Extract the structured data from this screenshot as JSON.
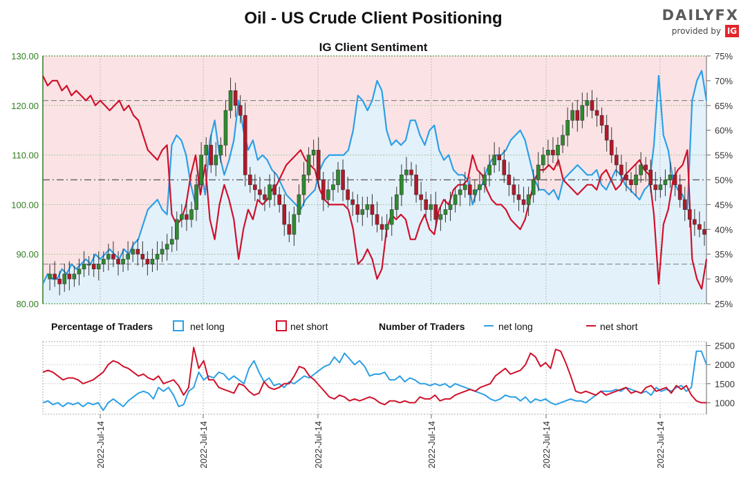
{
  "chart_data": [
    {
      "type": "candlestick+line",
      "title": "Oil - US Crude Client Positioning",
      "subtitle": "IG Client Sentiment",
      "price_axis": {
        "ticks": [
          "80.00",
          "90.00",
          "100.00",
          "110.00",
          "120.00",
          "130.00"
        ],
        "range": [
          80,
          130
        ]
      },
      "sentiment_axis": {
        "ticks": [
          "25%",
          "30%",
          "35%",
          "40%",
          "45%",
          "50%",
          "55%",
          "60%",
          "65%",
          "70%",
          "75%"
        ],
        "range": [
          25,
          75
        ]
      },
      "reference_lines_price": [
        88,
        121
      ],
      "reference_line_pct": 50,
      "prices": [
        85,
        86,
        85,
        84,
        86,
        85,
        86,
        87,
        88,
        88,
        87,
        88,
        89,
        90,
        89,
        88,
        89,
        90,
        91,
        90,
        89,
        88,
        89,
        90,
        91,
        92,
        93,
        97,
        98,
        97,
        99,
        104,
        110,
        112,
        108,
        110,
        112,
        119,
        123,
        120,
        118,
        106,
        104,
        103,
        102,
        101,
        104,
        102,
        100,
        96,
        94,
        98,
        102,
        106,
        110,
        111,
        105,
        101,
        103,
        104,
        107,
        103,
        101,
        100,
        98,
        99,
        100,
        98,
        96,
        95,
        96,
        99,
        102,
        106,
        107,
        106,
        102,
        101,
        99,
        100,
        97,
        98,
        99,
        100,
        102,
        103,
        104,
        102,
        103,
        104,
        106,
        108,
        110,
        109,
        106,
        104,
        102,
        101,
        100,
        102,
        105,
        108,
        110,
        111,
        110,
        112,
        114,
        117,
        119,
        117,
        120,
        121,
        119,
        118,
        116,
        113,
        110,
        108,
        106,
        105,
        104,
        106,
        108,
        107,
        104,
        103,
        104,
        105,
        106,
        104,
        101,
        99,
        97,
        96,
        95,
        94
      ],
      "net_long_pct": [
        29,
        31,
        30,
        30,
        32,
        31,
        33,
        32,
        33,
        34,
        33,
        35,
        34,
        35,
        36,
        35,
        34,
        36,
        35,
        37,
        38,
        41,
        44,
        45,
        46,
        44,
        43,
        57,
        59,
        58,
        55,
        49,
        45,
        53,
        47,
        58,
        62,
        55,
        51,
        54,
        58,
        66,
        60,
        56,
        58,
        54,
        55,
        54,
        52,
        51,
        49,
        47,
        46,
        45,
        44,
        46,
        47,
        48,
        52,
        54,
        55,
        55,
        55,
        55,
        56,
        60,
        67,
        66,
        64,
        66,
        70,
        68,
        60,
        57,
        58,
        57,
        58,
        62,
        62,
        59,
        57,
        60,
        61,
        56,
        54,
        55,
        52,
        51,
        51,
        50,
        45,
        48,
        49,
        52,
        54,
        55,
        55,
        56,
        58,
        59,
        60,
        58,
        54,
        50,
        48,
        48,
        47,
        48,
        46,
        50,
        51,
        52,
        53,
        52,
        51,
        51,
        52,
        49,
        48,
        50,
        52,
        51,
        49,
        48,
        47,
        46,
        48,
        49,
        57,
        71,
        59,
        56,
        50,
        48,
        47,
        44,
        66,
        70,
        72,
        66
      ],
      "net_short_pct": [
        71,
        69,
        70,
        70,
        68,
        69,
        67,
        68,
        67,
        66,
        67,
        65,
        66,
        65,
        64,
        65,
        66,
        64,
        65,
        63,
        62,
        59,
        56,
        55,
        54,
        56,
        57,
        43,
        41,
        42,
        45,
        51,
        55,
        47,
        53,
        42,
        38,
        45,
        49,
        46,
        42,
        34,
        40,
        44,
        42,
        46,
        45,
        46,
        48,
        49,
        51,
        53,
        54,
        55,
        56,
        54,
        53,
        52,
        48,
        46,
        45,
        45,
        45,
        45,
        44,
        40,
        33,
        34,
        36,
        34,
        30,
        32,
        40,
        43,
        42,
        43,
        42,
        38,
        38,
        41,
        43,
        40,
        39,
        44,
        46,
        45,
        48,
        49,
        49,
        50,
        55,
        52,
        51,
        48,
        46,
        45,
        45,
        44,
        42,
        41,
        40,
        42,
        46,
        50,
        52,
        52,
        53,
        52,
        54,
        50,
        49,
        48,
        47,
        48,
        49,
        49,
        48,
        51,
        52,
        50,
        48,
        49,
        51,
        52,
        53,
        54,
        52,
        51,
        43,
        29,
        41,
        44,
        50,
        52,
        53,
        56,
        34,
        30,
        28,
        34
      ],
      "sentiment_series_names": [
        "net long",
        "net short"
      ]
    },
    {
      "type": "line",
      "y_ticks": [
        "1000",
        "1500",
        "2000",
        "2500"
      ],
      "range": [
        700,
        2600
      ],
      "legend": {
        "group1_title": "Percentage of Traders",
        "group1_items": [
          "net long",
          "net short"
        ],
        "group2_title": "Number of Traders",
        "group2_items": [
          "net long",
          "net short"
        ]
      },
      "net_long_count": [
        1000,
        1050,
        950,
        1000,
        900,
        1000,
        950,
        1000,
        900,
        1000,
        950,
        1000,
        800,
        1000,
        1100,
        1000,
        900,
        1050,
        1150,
        1250,
        1300,
        1250,
        1100,
        1400,
        1300,
        1400,
        1200,
        900,
        950,
        1300,
        1400,
        1800,
        1600,
        1700,
        1650,
        1800,
        1750,
        1600,
        1700,
        1600,
        1500,
        1900,
        2100,
        1800,
        1550,
        1650,
        1450,
        1500,
        1400,
        1550,
        1500,
        1600,
        1700,
        1650,
        1750,
        1850,
        1950,
        2000,
        2200,
        2050,
        2300,
        2150,
        2000,
        2100,
        1950,
        1700,
        1750,
        1750,
        1800,
        1600,
        1600,
        1700,
        1550,
        1650,
        1600,
        1500,
        1500,
        1450,
        1500,
        1450,
        1500,
        1400,
        1500,
        1450,
        1400,
        1350,
        1300,
        1250,
        1200,
        1100,
        1050,
        1100,
        1200,
        1150,
        1150,
        1050,
        1150,
        1000,
        1100,
        1050,
        1100,
        1000,
        950,
        1000,
        1050,
        1100,
        1050,
        1050,
        1000,
        1100,
        1200,
        1300,
        1300,
        1300,
        1350,
        1300,
        1400,
        1350,
        1300,
        1250,
        1300,
        1200,
        1400,
        1300,
        1350,
        1300,
        1400,
        1450,
        1300,
        1400,
        2350,
        2350,
        2000
      ],
      "net_short_count": [
        1800,
        1850,
        1800,
        1700,
        1600,
        1650,
        1650,
        1600,
        1500,
        1550,
        1600,
        1700,
        1800,
        2000,
        2100,
        2050,
        1950,
        1900,
        1800,
        1700,
        1750,
        1650,
        1600,
        1700,
        1500,
        1550,
        1600,
        1450,
        1200,
        1400,
        2450,
        1900,
        2100,
        1600,
        1600,
        1400,
        1350,
        1300,
        1250,
        1500,
        1450,
        1300,
        1200,
        1250,
        1550,
        1400,
        1350,
        1400,
        1500,
        1500,
        1700,
        1950,
        1900,
        1700,
        1600,
        1450,
        1300,
        1150,
        1100,
        1200,
        1150,
        1050,
        1100,
        1050,
        1100,
        1150,
        1100,
        1000,
        950,
        1050,
        1050,
        1000,
        1050,
        1000,
        1000,
        1150,
        1100,
        1100,
        1200,
        1050,
        1100,
        1100,
        1200,
        1250,
        1300,
        1350,
        1300,
        1400,
        1450,
        1500,
        1700,
        1800,
        1900,
        1750,
        1800,
        1850,
        2000,
        2300,
        2200,
        1950,
        2050,
        1900,
        2400,
        2350,
        2050,
        1700,
        1300,
        1250,
        1300,
        1250,
        1200,
        1300,
        1200,
        1250,
        1300,
        1350,
        1400,
        1250,
        1300,
        1250,
        1400,
        1450,
        1300,
        1350,
        1400,
        1250,
        1450,
        1350,
        1450,
        1200,
        1050,
        1000,
        1000
      ]
    }
  ],
  "x_labels": [
    "2022-Jul-14",
    "2022-Jul-14",
    "2022-Jul-14",
    "2022-Jul-14",
    "2022-Jul-14",
    "2022-Jul-14"
  ],
  "colors": {
    "net_long": "#2b9fe6",
    "net_short": "#d0102a",
    "up_candle": "#2e8b2e",
    "down_candle": "#b3182a",
    "long_fill": "#e3f1fb",
    "short_fill": "#fbe3e5",
    "axis_green": "#2e7d1f"
  },
  "brand": {
    "name": "DAILYFX",
    "sub": "provided by",
    "logo": "IG"
  }
}
